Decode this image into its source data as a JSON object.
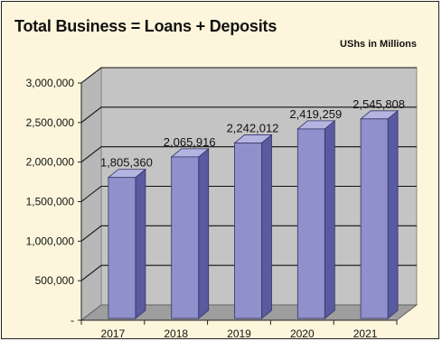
{
  "header": {
    "title": "Total Business = Loans + Deposits",
    "units": "UShs in Millions"
  },
  "chart_data": {
    "type": "bar",
    "title": "Total Business = Loans + Deposits",
    "subtitle": "UShs in Millions",
    "xlabel": "",
    "ylabel": "",
    "categories": [
      "2017",
      "2018",
      "2019",
      "2020",
      "2021"
    ],
    "values": [
      1805360,
      2065916,
      2242012,
      2419259,
      2545808
    ],
    "data_labels": [
      "1,805,360",
      "2,065,916",
      "2,242,012",
      "2,419,259",
      "2,545,808"
    ],
    "yticks": [
      0,
      500000,
      1000000,
      1500000,
      2000000,
      2500000,
      3000000
    ],
    "ytick_labels": [
      "-",
      "500,000",
      "1,000,000",
      "1,500,000",
      "2,000,000",
      "2,500,000",
      "3,000,000"
    ],
    "ylim": [
      0,
      3000000
    ],
    "grid": true,
    "legend": "none",
    "style": "3d-column",
    "colors": {
      "bar_front": "#9090cc",
      "bar_side": "#5a5aa0",
      "bar_top": "#b4b4e0",
      "wall": "#c4c4c4",
      "floor": "#9e9e9e",
      "panel_bg": "#fdf6dc",
      "gridline": "#111111"
    }
  }
}
